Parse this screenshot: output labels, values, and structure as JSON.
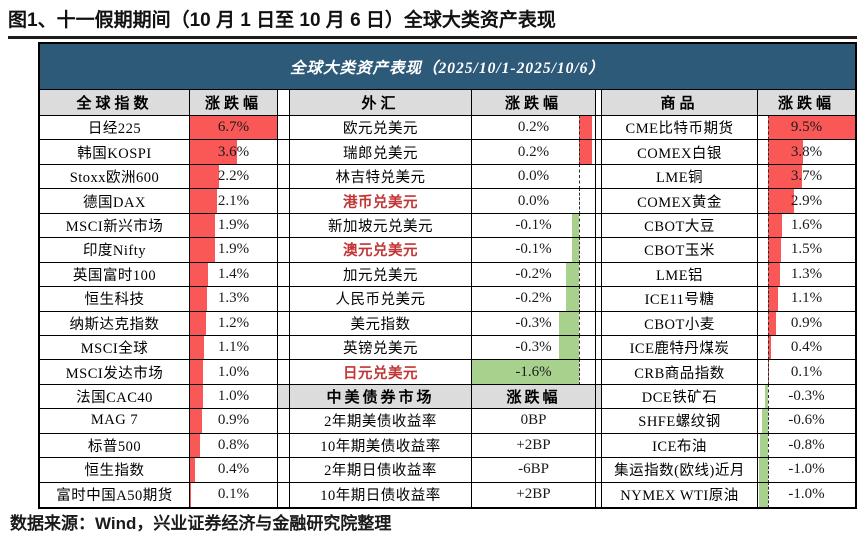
{
  "page_title": "图1、十一假期期间（10 月 1 日至 10 月 6 日）全球大类资产表现",
  "footer": "数据来源：Wind，兴业证券经济与金融研究院整理",
  "colors": {
    "header_bar_bg": "#2d5a78",
    "positive_bar": "#fa5757",
    "negative_bar": "#a9d18e",
    "highlight_name_text": "#c23535",
    "header_row_bg": "#dcdcdc"
  },
  "chart_data": {
    "type": "table",
    "title": "全球大类资产表现（2025/10/1-2025/10/6）",
    "groups": [
      {
        "header": "全球指数",
        "change_header": "涨跌幅",
        "baseline_frac": 0,
        "unit_frac": 0.1493,
        "rows": [
          {
            "name": "日经225",
            "value": "6.7%",
            "pct": 6.7
          },
          {
            "name": "韩国KOSPI",
            "value": "3.6%",
            "pct": 3.6
          },
          {
            "name": "Stoxx欧洲600",
            "value": "2.2%",
            "pct": 2.2
          },
          {
            "name": "德国DAX",
            "value": "2.1%",
            "pct": 2.1
          },
          {
            "name": "MSCI新兴市场",
            "value": "1.9%",
            "pct": 1.9
          },
          {
            "name": "印度Nifty",
            "value": "1.9%",
            "pct": 1.9
          },
          {
            "name": "英国富时100",
            "value": "1.4%",
            "pct": 1.4
          },
          {
            "name": "恒生科技",
            "value": "1.3%",
            "pct": 1.3
          },
          {
            "name": "纳斯达克指数",
            "value": "1.2%",
            "pct": 1.2
          },
          {
            "name": "MSCI全球",
            "value": "1.1%",
            "pct": 1.1
          },
          {
            "name": "MSCI发达市场",
            "value": "1.0%",
            "pct": 1.0
          },
          {
            "name": "法国CAC40",
            "value": "1.0%",
            "pct": 1.0
          },
          {
            "name": "MAG 7",
            "value": "0.9%",
            "pct": 0.9
          },
          {
            "name": "标普500",
            "value": "0.8%",
            "pct": 0.8
          },
          {
            "name": "恒生指数",
            "value": "0.4%",
            "pct": 0.4
          },
          {
            "name": "富时中国A50期货",
            "value": "0.1%",
            "pct": 0.1
          }
        ]
      },
      {
        "header": "外汇",
        "change_header": "涨跌幅",
        "baseline_frac": 0.87,
        "unit_frac": 0.544,
        "rows": [
          {
            "name": "欧元兑美元",
            "value": "0.2%",
            "pct": 0.2
          },
          {
            "name": "瑞郎兑美元",
            "value": "0.2%",
            "pct": 0.2
          },
          {
            "name": "林吉特兑美元",
            "value": "0.0%",
            "pct": 0.0
          },
          {
            "name": "港币兑美元",
            "value": "0.0%",
            "pct": 0.0,
            "red": true
          },
          {
            "name": "新加坡元兑美元",
            "value": "-0.1%",
            "pct": -0.1
          },
          {
            "name": "澳元兑美元",
            "value": "-0.1%",
            "pct": -0.1,
            "red": true
          },
          {
            "name": "加元兑美元",
            "value": "-0.2%",
            "pct": -0.2
          },
          {
            "name": "人民币兑美元",
            "value": "-0.2%",
            "pct": -0.2
          },
          {
            "name": "美元指数",
            "value": "-0.3%",
            "pct": -0.3
          },
          {
            "name": "英镑兑美元",
            "value": "-0.3%",
            "pct": -0.3
          },
          {
            "name": "日元兑美元",
            "value": "-1.6%",
            "pct": -1.6,
            "red": true
          }
        ],
        "subsection": {
          "header": "中美债券市场",
          "change_header": "涨跌幅",
          "rows": [
            {
              "name": "2年期美债收益率",
              "value": "0BP"
            },
            {
              "name": "10年期美债收益率",
              "value": "+2BP"
            },
            {
              "name": "2年期日债收益率",
              "value": "-6BP"
            },
            {
              "name": "10年期日债收益率",
              "value": "+2BP"
            }
          ]
        }
      },
      {
        "header": "商品",
        "change_header": "涨跌幅",
        "baseline_frac": 0.1,
        "unit_frac": 0.0947,
        "rows": [
          {
            "name": "CME比特币期货",
            "value": "9.5%",
            "pct": 9.5
          },
          {
            "name": "COMEX白银",
            "value": "3.8%",
            "pct": 3.8
          },
          {
            "name": "LME铜",
            "value": "3.7%",
            "pct": 3.7
          },
          {
            "name": "COMEX黄金",
            "value": "2.9%",
            "pct": 2.9
          },
          {
            "name": "CBOT大豆",
            "value": "1.6%",
            "pct": 1.6
          },
          {
            "name": "CBOT玉米",
            "value": "1.5%",
            "pct": 1.5
          },
          {
            "name": "LME铝",
            "value": "1.3%",
            "pct": 1.3
          },
          {
            "name": "ICE11号糖",
            "value": "1.1%",
            "pct": 1.1
          },
          {
            "name": "CBOT小麦",
            "value": "0.9%",
            "pct": 0.9
          },
          {
            "name": "ICE鹿特丹煤炭",
            "value": "0.4%",
            "pct": 0.4
          },
          {
            "name": "CRB商品指数",
            "value": "0.1%",
            "pct": 0.1
          },
          {
            "name": "DCE铁矿石",
            "value": "-0.3%",
            "pct": -0.3
          },
          {
            "name": "SHFE螺纹钢",
            "value": "-0.6%",
            "pct": -0.6
          },
          {
            "name": "ICE布油",
            "value": "-0.8%",
            "pct": -0.8
          },
          {
            "name": "集运指数(欧线)近月",
            "value": "-1.0%",
            "pct": -1.0
          },
          {
            "name": "NYMEX WTI原油",
            "value": "-1.0%",
            "pct": -1.0
          }
        ]
      }
    ]
  }
}
